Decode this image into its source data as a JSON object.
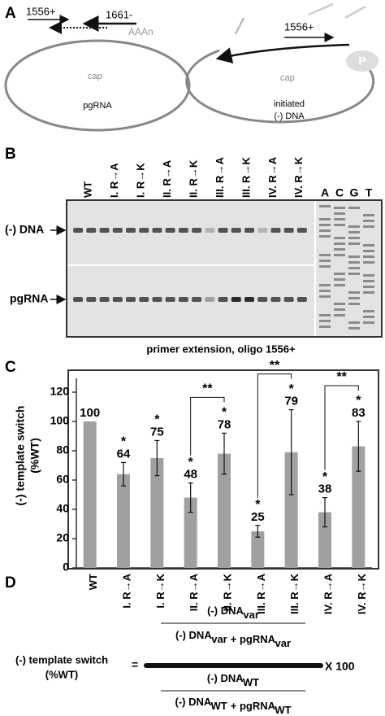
{
  "panels": {
    "a": {
      "label": "A",
      "left": {
        "primer": "1556+",
        "primer2": "1661-",
        "tail": "AAAn",
        "cap": "cap",
        "name": "pgRNA"
      },
      "right": {
        "primer": "1556+",
        "protein": "P",
        "cap": "cap",
        "name_lines": [
          "initiated",
          "(-) DNA"
        ]
      }
    },
    "b": {
      "label": "B",
      "lanes": [
        "WT",
        "I. R→A",
        "I. R→K",
        "II. R→A",
        "II. R→K",
        "III. R→A",
        "III. R→K",
        "IV. R→A",
        "IV. R→K"
      ],
      "bands": [
        "(-) DNA",
        "pgRNA"
      ],
      "sequencing": [
        "A",
        "C",
        "G",
        "T"
      ],
      "caption": "primer extension, oligo 1556+"
    },
    "d": {
      "label": "D",
      "left_lines": [
        "(-) template switch",
        "(%WT)"
      ],
      "equals": "=",
      "times": "X 100",
      "num_top": [
        {
          "text": "(-) DNA",
          "sub": "var"
        }
      ],
      "num_bottom": [
        {
          "text": "(-) DNA",
          "sub": "var"
        },
        {
          "text": "+ pgRNA",
          "sub": "var"
        }
      ],
      "den_top": [
        {
          "text": "(-) DNA",
          "sub": "WT"
        }
      ],
      "den_bottom": [
        {
          "text": "(-) DNA",
          "sub": "WT"
        },
        {
          "text": "+ pgRNA",
          "sub": "WT"
        }
      ]
    }
  },
  "chart_data": {
    "type": "bar",
    "panel_label": "C",
    "y_label_lines": [
      "(-) template switch",
      "(%WT)"
    ],
    "categories": [
      "WT",
      "I. R→A",
      "I. R→K",
      "II. R→A",
      "II. R→K",
      "III. R→A",
      "III. R→K",
      "IV. R→A",
      "IV. R→K"
    ],
    "values": [
      100,
      64,
      75,
      48,
      78,
      25,
      79,
      38,
      83
    ],
    "errors": [
      null,
      8,
      12,
      10,
      14,
      4,
      29,
      10,
      17
    ],
    "color": "#a0a0a0",
    "ylim": [
      0,
      135
    ],
    "yticks": [
      0,
      20,
      40,
      60,
      80,
      100,
      120
    ],
    "annotations": [
      {
        "text": "*",
        "category": 1
      },
      {
        "text": "*",
        "category": 2
      },
      {
        "text": "*",
        "category": 3
      },
      {
        "text": "*",
        "category": 4
      },
      {
        "text": "*",
        "category": 5
      },
      {
        "text": "*",
        "category": 6
      },
      {
        "text": "*",
        "category": 7
      },
      {
        "text": "*",
        "category": 8
      }
    ],
    "brackets": [
      {
        "text": "**",
        "from": 3,
        "to": 4
      },
      {
        "text": "**",
        "from": 5,
        "to": 6
      },
      {
        "text": "**",
        "from": 7,
        "to": 8
      }
    ]
  }
}
